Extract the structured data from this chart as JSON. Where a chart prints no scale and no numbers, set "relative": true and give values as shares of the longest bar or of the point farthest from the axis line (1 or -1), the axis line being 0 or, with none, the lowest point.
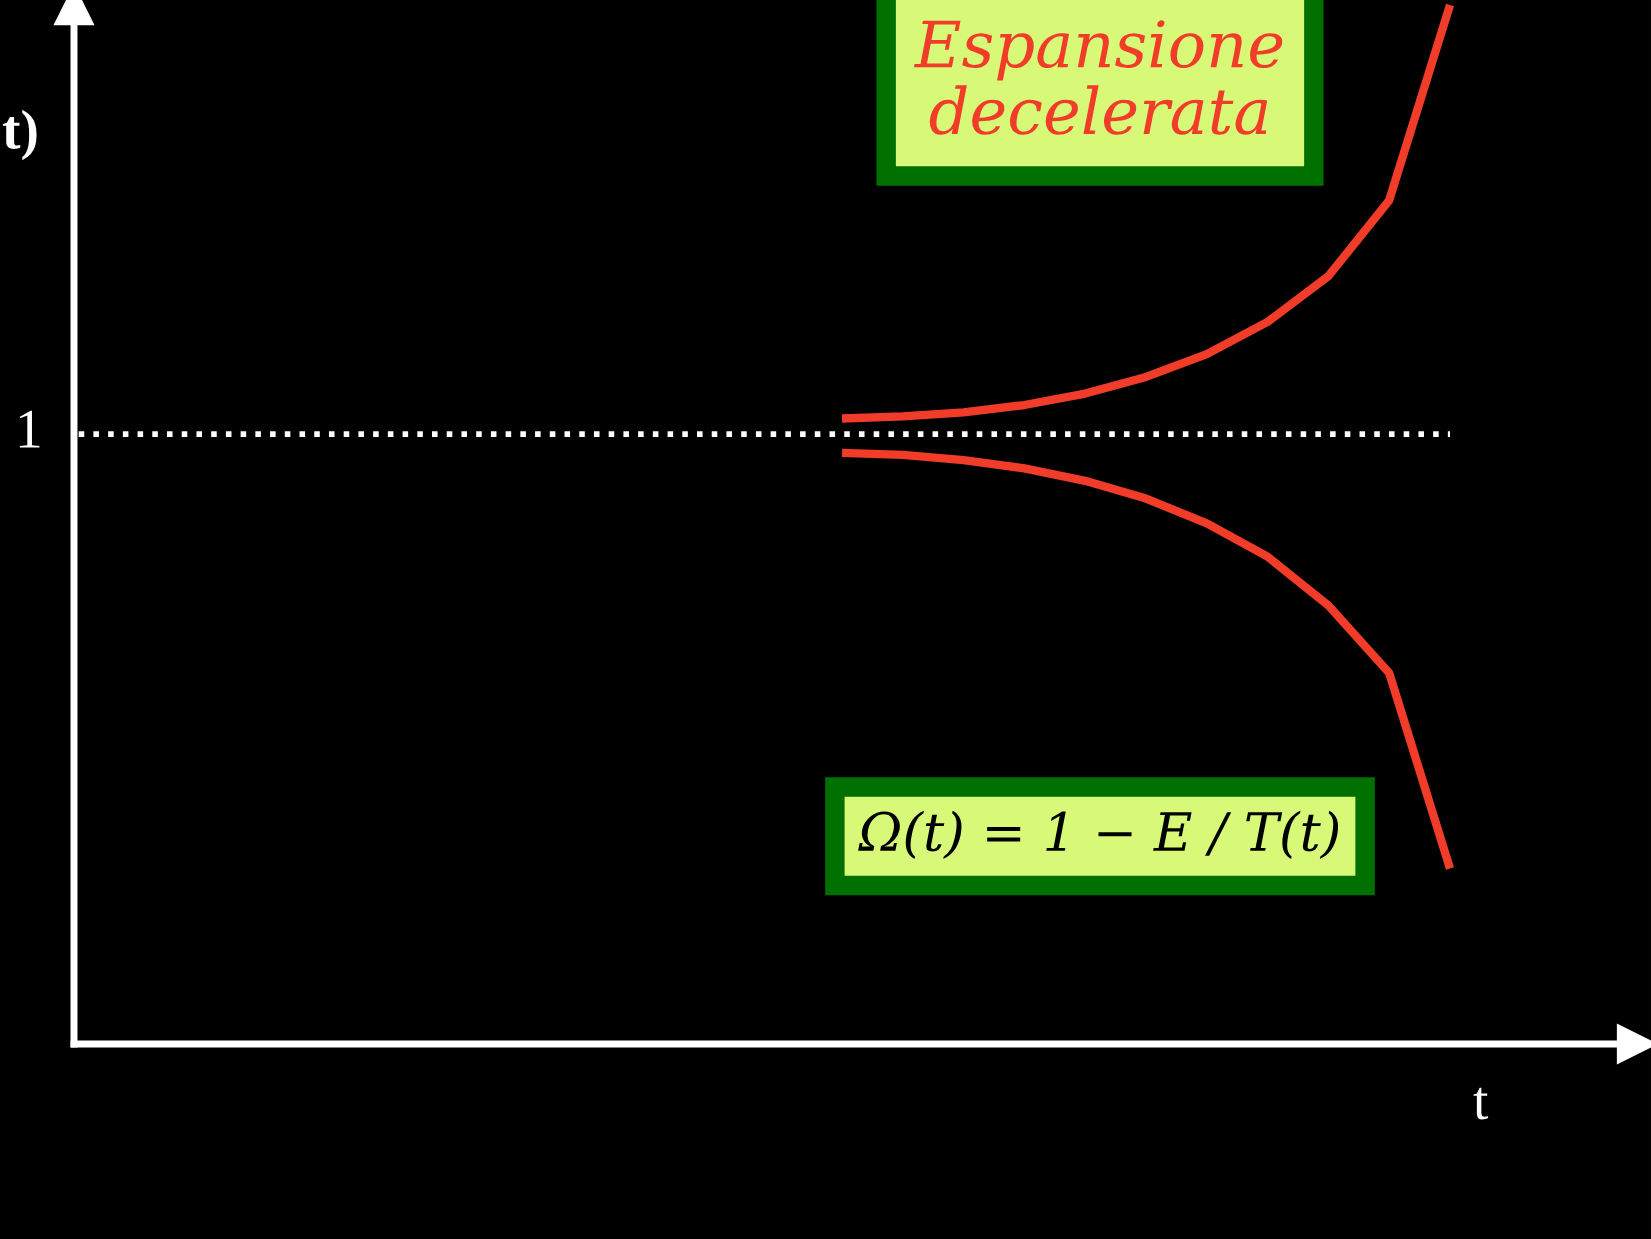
{
  "chart_data": {
    "type": "line",
    "relative": true,
    "xlabel": "t",
    "categories": [
      null,
      null,
      null,
      null,
      null,
      null,
      null,
      null,
      null,
      null,
      null
    ],
    "series": [
      {
        "color": "#f03c28",
        "values": [
          0.602,
          0.604,
          0.608,
          0.615,
          0.626,
          0.642,
          0.664,
          0.695,
          0.739,
          0.812,
          1.0
        ]
      },
      {
        "color": "#f03c28",
        "values": [
          0.569,
          0.567,
          0.562,
          0.554,
          0.542,
          0.525,
          0.501,
          0.469,
          0.422,
          0.357,
          0.169
        ]
      }
    ],
    "ref_lines": [
      {
        "axis": "y",
        "value": 0.587,
        "label": "1",
        "color": "#ffffff",
        "line_style": "dotted"
      }
    ],
    "annotations": [
      "Espansione\ndecelerata",
      "Ω(t) = 1 − E / T(t)",
      "t)"
    ],
    "legend": false,
    "grid": false,
    "marker": "none",
    "line_style": "solid"
  }
}
